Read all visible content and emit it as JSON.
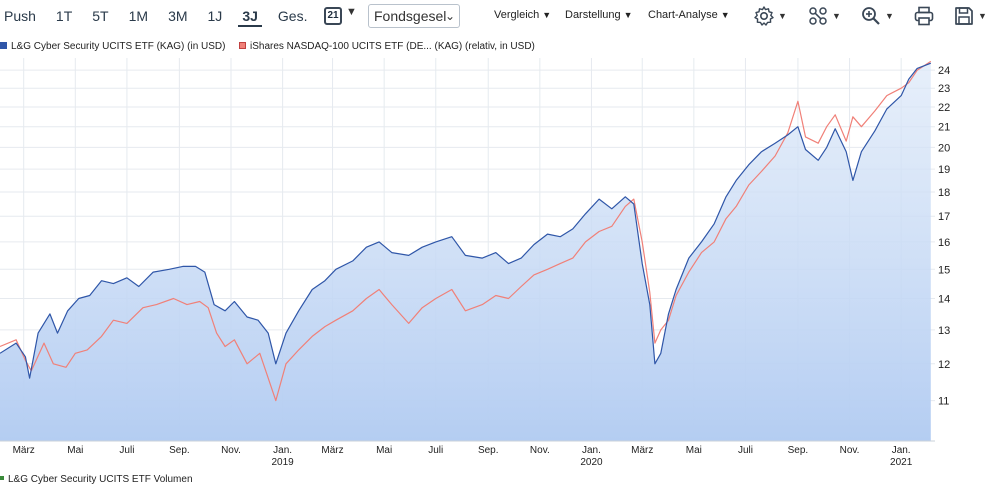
{
  "toolbar": {
    "tabs": [
      {
        "label": "Push",
        "active": false
      },
      {
        "label": "1T",
        "active": false
      },
      {
        "label": "5T",
        "active": false
      },
      {
        "label": "1M",
        "active": false
      },
      {
        "label": "3M",
        "active": false
      },
      {
        "label": "1J",
        "active": false
      },
      {
        "label": "3J",
        "active": true
      },
      {
        "label": "Ges.",
        "active": false
      }
    ],
    "calendar_day": "21",
    "calendar_icon": "calendar-icon",
    "dropdown_value": "Fondsgesel",
    "menus": [
      "Vergleich",
      "Darstellung",
      "Chart-Analyse"
    ],
    "icons": [
      "gear-icon",
      "nodes-icon",
      "zoom-in-icon",
      "print-icon",
      "save-icon"
    ]
  },
  "legend": {
    "series1": "L&G Cyber Security UCITS ETF (KAG) (in USD)",
    "series2": "iShares NASDAQ-100 UCITS ETF (DE... (KAG) (relativ, in USD)"
  },
  "volume_legend": "L&G Cyber Security UCITS ETF Volumen",
  "colors": {
    "series1": "#2f56a8",
    "series2": "#f08078",
    "area_top": "#dce8f8",
    "area_bottom": "#b4cdf2",
    "volume": "#3a8a3a"
  },
  "chart_data": {
    "type": "line",
    "y_axis_position": "right",
    "ylim": [
      10,
      24.7
    ],
    "yticks": [
      11,
      12,
      13,
      14,
      15,
      16,
      17,
      18,
      19,
      20,
      21,
      22,
      23,
      24
    ],
    "y_scale": "log",
    "x_range": [
      "2018-02-01",
      "2021-02-10"
    ],
    "xticks": [
      {
        "date": "2018-03-01",
        "label": "März",
        "year": ""
      },
      {
        "date": "2018-05-01",
        "label": "Mai",
        "year": ""
      },
      {
        "date": "2018-07-01",
        "label": "Juli",
        "year": ""
      },
      {
        "date": "2018-09-01",
        "label": "Sep.",
        "year": ""
      },
      {
        "date": "2018-11-01",
        "label": "Nov.",
        "year": ""
      },
      {
        "date": "2019-01-01",
        "label": "Jan.",
        "year": "2019"
      },
      {
        "date": "2019-03-01",
        "label": "März",
        "year": ""
      },
      {
        "date": "2019-05-01",
        "label": "Mai",
        "year": ""
      },
      {
        "date": "2019-07-01",
        "label": "Juli",
        "year": ""
      },
      {
        "date": "2019-09-01",
        "label": "Sep.",
        "year": ""
      },
      {
        "date": "2019-11-01",
        "label": "Nov.",
        "year": ""
      },
      {
        "date": "2020-01-01",
        "label": "Jan.",
        "year": "2020"
      },
      {
        "date": "2020-03-01",
        "label": "März",
        "year": ""
      },
      {
        "date": "2020-05-01",
        "label": "Mai",
        "year": ""
      },
      {
        "date": "2020-07-01",
        "label": "Juli",
        "year": ""
      },
      {
        "date": "2020-09-01",
        "label": "Sep.",
        "year": ""
      },
      {
        "date": "2020-11-01",
        "label": "Nov.",
        "year": ""
      },
      {
        "date": "2021-01-01",
        "label": "Jan.",
        "year": "2021"
      }
    ],
    "grid": true,
    "series": [
      {
        "name": "L&G Cyber Security UCITS ETF (KAG) (in USD)",
        "points": [
          [
            "2018-02-01",
            12.3
          ],
          [
            "2018-02-20",
            12.6
          ],
          [
            "2018-03-03",
            12.2
          ],
          [
            "2018-03-08",
            11.6
          ],
          [
            "2018-03-18",
            12.9
          ],
          [
            "2018-04-01",
            13.5
          ],
          [
            "2018-04-10",
            12.9
          ],
          [
            "2018-04-22",
            13.6
          ],
          [
            "2018-05-05",
            14.0
          ],
          [
            "2018-05-18",
            14.1
          ],
          [
            "2018-06-01",
            14.6
          ],
          [
            "2018-06-15",
            14.5
          ],
          [
            "2018-07-01",
            14.7
          ],
          [
            "2018-07-15",
            14.4
          ],
          [
            "2018-08-01",
            14.9
          ],
          [
            "2018-08-20",
            15.0
          ],
          [
            "2018-09-05",
            15.1
          ],
          [
            "2018-09-20",
            15.1
          ],
          [
            "2018-10-01",
            14.9
          ],
          [
            "2018-10-12",
            13.8
          ],
          [
            "2018-10-25",
            13.6
          ],
          [
            "2018-11-05",
            13.9
          ],
          [
            "2018-11-20",
            13.4
          ],
          [
            "2018-12-03",
            13.3
          ],
          [
            "2018-12-15",
            12.9
          ],
          [
            "2018-12-24",
            12.0
          ],
          [
            "2019-01-05",
            12.9
          ],
          [
            "2019-01-20",
            13.6
          ],
          [
            "2019-02-05",
            14.3
          ],
          [
            "2019-02-20",
            14.6
          ],
          [
            "2019-03-05",
            15.0
          ],
          [
            "2019-03-25",
            15.3
          ],
          [
            "2019-04-10",
            15.8
          ],
          [
            "2019-04-25",
            16.0
          ],
          [
            "2019-05-10",
            15.6
          ],
          [
            "2019-05-30",
            15.5
          ],
          [
            "2019-06-15",
            15.8
          ],
          [
            "2019-07-01",
            16.0
          ],
          [
            "2019-07-20",
            16.2
          ],
          [
            "2019-08-05",
            15.5
          ],
          [
            "2019-08-25",
            15.4
          ],
          [
            "2019-09-10",
            15.6
          ],
          [
            "2019-09-25",
            15.2
          ],
          [
            "2019-10-10",
            15.4
          ],
          [
            "2019-10-25",
            15.9
          ],
          [
            "2019-11-10",
            16.3
          ],
          [
            "2019-11-25",
            16.2
          ],
          [
            "2019-12-10",
            16.5
          ],
          [
            "2019-12-25",
            17.1
          ],
          [
            "2020-01-10",
            17.7
          ],
          [
            "2020-01-25",
            17.3
          ],
          [
            "2020-02-10",
            17.8
          ],
          [
            "2020-02-20",
            17.5
          ],
          [
            "2020-03-01",
            15.2
          ],
          [
            "2020-03-10",
            13.8
          ],
          [
            "2020-03-16",
            12.0
          ],
          [
            "2020-03-23",
            12.3
          ],
          [
            "2020-04-01",
            13.5
          ],
          [
            "2020-04-10",
            14.3
          ],
          [
            "2020-04-25",
            15.4
          ],
          [
            "2020-05-10",
            16.0
          ],
          [
            "2020-05-25",
            16.7
          ],
          [
            "2020-06-08",
            17.8
          ],
          [
            "2020-06-20",
            18.5
          ],
          [
            "2020-07-05",
            19.2
          ],
          [
            "2020-07-20",
            19.8
          ],
          [
            "2020-08-05",
            20.2
          ],
          [
            "2020-08-20",
            20.6
          ],
          [
            "2020-09-01",
            21.0
          ],
          [
            "2020-09-10",
            19.9
          ],
          [
            "2020-09-25",
            19.4
          ],
          [
            "2020-10-05",
            20.0
          ],
          [
            "2020-10-15",
            20.9
          ],
          [
            "2020-10-28",
            19.8
          ],
          [
            "2020-11-05",
            18.5
          ],
          [
            "2020-11-15",
            19.8
          ],
          [
            "2020-12-01",
            20.8
          ],
          [
            "2020-12-15",
            21.9
          ],
          [
            "2021-01-01",
            22.6
          ],
          [
            "2021-01-10",
            23.5
          ],
          [
            "2021-01-20",
            24.1
          ],
          [
            "2021-02-05",
            24.4
          ]
        ]
      },
      {
        "name": "iShares NASDAQ-100 UCITS ETF (DE... (KAG) (relativ, in USD)",
        "points": [
          [
            "2018-02-01",
            12.5
          ],
          [
            "2018-02-20",
            12.7
          ],
          [
            "2018-03-03",
            12.1
          ],
          [
            "2018-03-10",
            11.8
          ],
          [
            "2018-03-25",
            12.6
          ],
          [
            "2018-04-05",
            12.0
          ],
          [
            "2018-04-20",
            11.9
          ],
          [
            "2018-05-01",
            12.3
          ],
          [
            "2018-05-15",
            12.4
          ],
          [
            "2018-06-01",
            12.8
          ],
          [
            "2018-06-15",
            13.3
          ],
          [
            "2018-07-01",
            13.2
          ],
          [
            "2018-07-20",
            13.7
          ],
          [
            "2018-08-05",
            13.8
          ],
          [
            "2018-08-25",
            14.0
          ],
          [
            "2018-09-10",
            13.8
          ],
          [
            "2018-09-25",
            13.9
          ],
          [
            "2018-10-05",
            13.7
          ],
          [
            "2018-10-15",
            12.9
          ],
          [
            "2018-10-25",
            12.5
          ],
          [
            "2018-11-05",
            12.7
          ],
          [
            "2018-11-20",
            12.0
          ],
          [
            "2018-12-05",
            12.3
          ],
          [
            "2018-12-15",
            11.6
          ],
          [
            "2018-12-24",
            11.0
          ],
          [
            "2019-01-05",
            12.0
          ],
          [
            "2019-01-20",
            12.4
          ],
          [
            "2019-02-05",
            12.8
          ],
          [
            "2019-02-20",
            13.1
          ],
          [
            "2019-03-05",
            13.3
          ],
          [
            "2019-03-25",
            13.6
          ],
          [
            "2019-04-10",
            14.0
          ],
          [
            "2019-04-25",
            14.3
          ],
          [
            "2019-05-10",
            13.8
          ],
          [
            "2019-05-30",
            13.2
          ],
          [
            "2019-06-15",
            13.7
          ],
          [
            "2019-07-01",
            14.0
          ],
          [
            "2019-07-20",
            14.3
          ],
          [
            "2019-08-05",
            13.6
          ],
          [
            "2019-08-25",
            13.8
          ],
          [
            "2019-09-10",
            14.1
          ],
          [
            "2019-09-25",
            14.0
          ],
          [
            "2019-10-10",
            14.4
          ],
          [
            "2019-10-25",
            14.8
          ],
          [
            "2019-11-10",
            15.0
          ],
          [
            "2019-11-25",
            15.2
          ],
          [
            "2019-12-10",
            15.4
          ],
          [
            "2019-12-25",
            16.0
          ],
          [
            "2020-01-10",
            16.4
          ],
          [
            "2020-01-25",
            16.6
          ],
          [
            "2020-02-10",
            17.4
          ],
          [
            "2020-02-20",
            17.7
          ],
          [
            "2020-03-01",
            16.0
          ],
          [
            "2020-03-10",
            14.2
          ],
          [
            "2020-03-16",
            12.6
          ],
          [
            "2020-03-23",
            13.0
          ],
          [
            "2020-04-01",
            13.3
          ],
          [
            "2020-04-10",
            14.1
          ],
          [
            "2020-04-25",
            14.9
          ],
          [
            "2020-05-10",
            15.6
          ],
          [
            "2020-05-25",
            16.0
          ],
          [
            "2020-06-08",
            16.9
          ],
          [
            "2020-06-20",
            17.4
          ],
          [
            "2020-07-05",
            18.3
          ],
          [
            "2020-07-20",
            18.9
          ],
          [
            "2020-08-05",
            19.6
          ],
          [
            "2020-08-20",
            20.7
          ],
          [
            "2020-09-01",
            22.3
          ],
          [
            "2020-09-10",
            20.5
          ],
          [
            "2020-09-25",
            20.2
          ],
          [
            "2020-10-05",
            21.0
          ],
          [
            "2020-10-15",
            21.6
          ],
          [
            "2020-10-28",
            20.3
          ],
          [
            "2020-11-05",
            21.5
          ],
          [
            "2020-11-15",
            21.0
          ],
          [
            "2020-12-01",
            21.8
          ],
          [
            "2020-12-15",
            22.6
          ],
          [
            "2021-01-01",
            23.0
          ],
          [
            "2021-01-10",
            23.3
          ],
          [
            "2021-01-20",
            24.0
          ],
          [
            "2021-02-05",
            24.5
          ]
        ]
      }
    ]
  }
}
